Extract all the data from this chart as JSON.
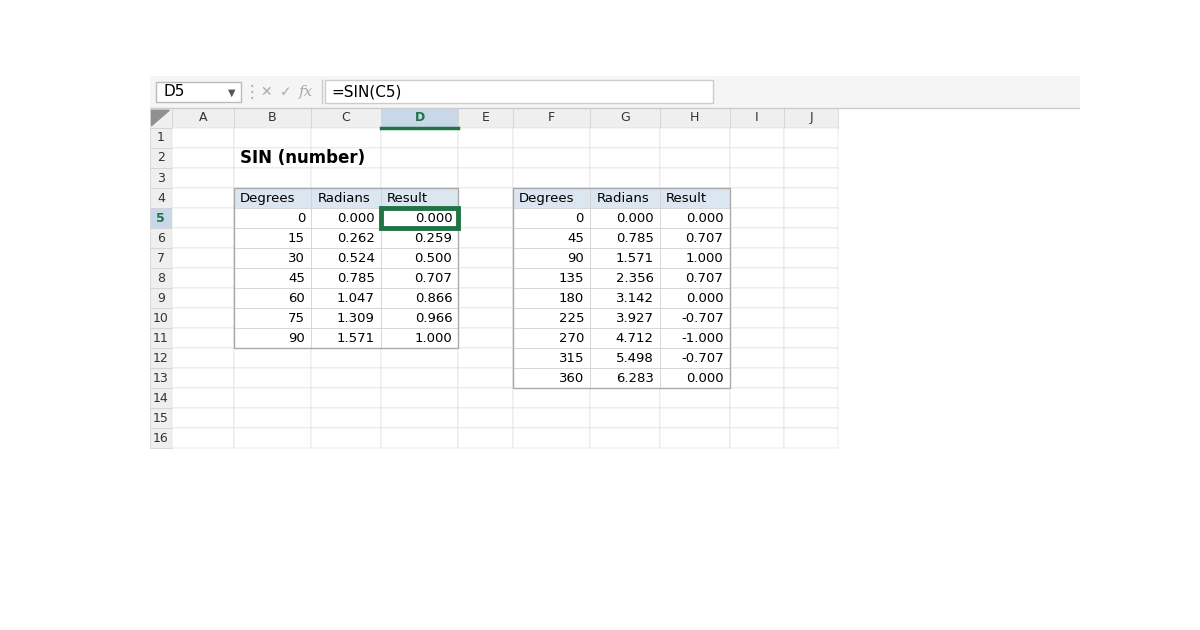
{
  "formula_bar_cell": "D5",
  "formula_bar_formula": "=SIN(C5)",
  "title": "SIN (number)",
  "col_headers": [
    "A",
    "B",
    "C",
    "D",
    "E",
    "F",
    "G",
    "H",
    "I",
    "J"
  ],
  "row_headers": [
    "1",
    "2",
    "3",
    "4",
    "5",
    "6",
    "7",
    "8",
    "9",
    "10",
    "11",
    "12",
    "13",
    "14",
    "15",
    "16"
  ],
  "table1_headers": [
    "Degrees",
    "Radians",
    "Result"
  ],
  "table1_data": [
    [
      "0",
      "0.000",
      "0.000"
    ],
    [
      "15",
      "0.262",
      "0.259"
    ],
    [
      "30",
      "0.524",
      "0.500"
    ],
    [
      "45",
      "0.785",
      "0.707"
    ],
    [
      "60",
      "1.047",
      "0.866"
    ],
    [
      "75",
      "1.309",
      "0.966"
    ],
    [
      "90",
      "1.571",
      "1.000"
    ]
  ],
  "table2_headers": [
    "Degrees",
    "Radians",
    "Result"
  ],
  "table2_data": [
    [
      "0",
      "0.000",
      "0.000"
    ],
    [
      "45",
      "0.785",
      "0.707"
    ],
    [
      "90",
      "1.571",
      "1.000"
    ],
    [
      "135",
      "2.356",
      "0.707"
    ],
    [
      "180",
      "3.142",
      "0.000"
    ],
    [
      "225",
      "3.927",
      "-0.707"
    ],
    [
      "270",
      "4.712",
      "-1.000"
    ],
    [
      "315",
      "5.498",
      "-0.707"
    ],
    [
      "360",
      "6.283",
      "0.000"
    ]
  ],
  "bg_color": "#ffffff",
  "table_header_bg": "#dce6f1",
  "cell_bg": "#ffffff",
  "grid_color": "#d0d0d0",
  "col_header_bg": "#efefef",
  "row_header_bg": "#efefef",
  "selected_col_header_bg": "#c8d8e8",
  "selected_col_header_border": "#217346",
  "selected_cell_border": "#217346",
  "formula_bar_bg": "#ffffff",
  "toolbar_bg": "#f5f5f5",
  "text_color": "#000000",
  "header_text_color": "#333333"
}
